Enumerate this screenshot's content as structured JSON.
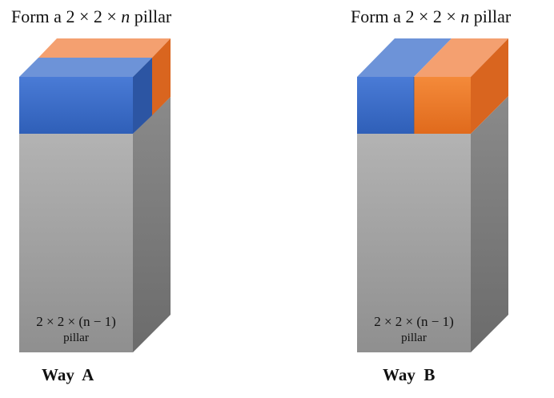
{
  "left": {
    "title_prefix": "Form a 2 × 2 × ",
    "title_var": "n",
    "title_suffix": " pillar",
    "base_label_line1": "2 × 2 × (n − 1)",
    "base_label_line2": "pillar",
    "way_label": "Way  A"
  },
  "right": {
    "title_prefix": "Form a 2 × 2 × ",
    "title_var": "n",
    "title_suffix": " pillar",
    "base_label_line1": "2 × 2 × (n − 1)",
    "base_label_line2": "pillar",
    "way_label": "Way  B"
  },
  "colors": {
    "blue": "#4472c4",
    "orange": "#ed7d31",
    "gray": "#a5a5a5"
  }
}
